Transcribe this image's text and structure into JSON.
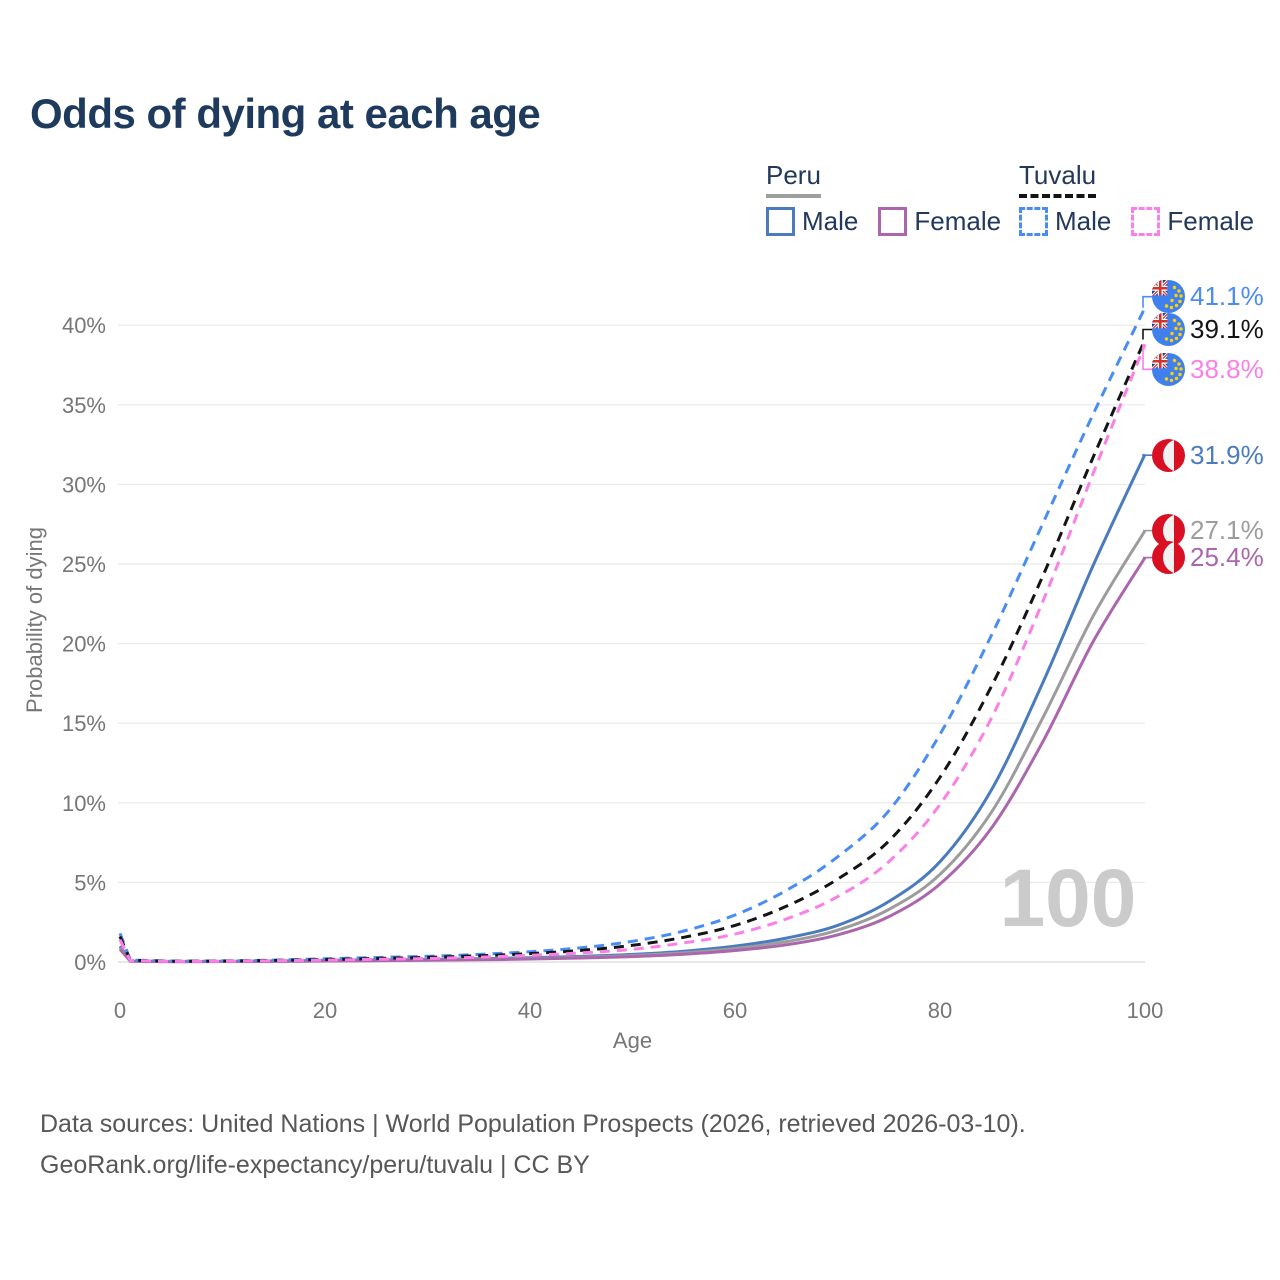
{
  "title": "Odds of dying at each age",
  "watermark": "100",
  "legend": {
    "groups": [
      {
        "label": "Peru",
        "line_style": "solid",
        "underline_color": "#9e9e9e",
        "items": [
          {
            "label": "Male",
            "color": "#4a7bbd"
          },
          {
            "label": "Female",
            "color": "#ab66ad"
          }
        ]
      },
      {
        "label": "Tuvalu",
        "line_style": "dashed",
        "underline_color": "#141414",
        "items": [
          {
            "label": "Male",
            "color": "#4a8df2"
          },
          {
            "label": "Female",
            "color": "#fa80e8"
          }
        ]
      }
    ]
  },
  "chart_data": {
    "type": "line",
    "title": "Odds of dying at each age",
    "xlabel": "Age",
    "ylabel": "Probability of dying",
    "xlim": [
      0,
      100
    ],
    "ylim": [
      0,
      42
    ],
    "grid": "horizontal",
    "x_ticks": [
      0,
      20,
      40,
      60,
      80,
      100
    ],
    "y_ticks": [
      0,
      5,
      10,
      15,
      20,
      25,
      30,
      35,
      40
    ],
    "y_tick_labels": [
      "0%",
      "5%",
      "10%",
      "15%",
      "20%",
      "25%",
      "30%",
      "35%",
      "40%"
    ],
    "x": [
      0,
      1,
      5,
      10,
      15,
      20,
      25,
      30,
      35,
      40,
      45,
      50,
      55,
      60,
      65,
      70,
      75,
      80,
      85,
      90,
      95,
      100
    ],
    "series": [
      {
        "name": "Tuvalu Male",
        "country": "Tuvalu",
        "sex": "Male",
        "color": "#4a8df2",
        "dash": "dashed",
        "flag": "tuvalu",
        "end_label": "41.1%",
        "values": [
          1.8,
          0.12,
          0.06,
          0.07,
          0.12,
          0.2,
          0.28,
          0.36,
          0.48,
          0.65,
          0.9,
          1.3,
          1.95,
          2.95,
          4.5,
          6.6,
          9.5,
          14.3,
          20.5,
          27.5,
          34.5,
          41.1
        ]
      },
      {
        "name": "Tuvalu Both sexes",
        "country": "Tuvalu",
        "sex": "Both",
        "color": "#141414",
        "dash": "dashed",
        "flag": "tuvalu",
        "end_label": "39.1%",
        "values": [
          1.6,
          0.1,
          0.05,
          0.06,
          0.1,
          0.16,
          0.22,
          0.29,
          0.39,
          0.53,
          0.73,
          1.05,
          1.55,
          2.3,
          3.5,
          5.2,
          7.6,
          11.6,
          17.3,
          24.2,
          31.8,
          39.1
        ]
      },
      {
        "name": "Tuvalu Female",
        "country": "Tuvalu",
        "sex": "Female",
        "color": "#fa80e8",
        "dash": "dashed",
        "flag": "tuvalu",
        "end_label": "38.8%",
        "values": [
          1.4,
          0.09,
          0.04,
          0.05,
          0.08,
          0.12,
          0.17,
          0.22,
          0.3,
          0.42,
          0.57,
          0.8,
          1.2,
          1.75,
          2.7,
          4.1,
          6.3,
          9.9,
          15.3,
          22.6,
          30.8,
          38.8
        ]
      },
      {
        "name": "Peru Male",
        "country": "Peru",
        "sex": "Male",
        "color": "#4a7bbd",
        "dash": "solid",
        "flag": "peru",
        "end_label": "31.9%",
        "values": [
          1.0,
          0.07,
          0.03,
          0.04,
          0.06,
          0.1,
          0.13,
          0.16,
          0.21,
          0.27,
          0.35,
          0.48,
          0.68,
          1.0,
          1.5,
          2.3,
          3.8,
          6.3,
          10.8,
          17.5,
          25.0,
          31.9
        ]
      },
      {
        "name": "Peru Both sexes",
        "country": "Peru",
        "sex": "Both",
        "color": "#9c9c9c",
        "dash": "solid",
        "flag": "peru",
        "end_label": "27.1%",
        "values": [
          0.9,
          0.06,
          0.03,
          0.03,
          0.05,
          0.08,
          0.11,
          0.13,
          0.17,
          0.22,
          0.3,
          0.41,
          0.58,
          0.85,
          1.28,
          2.0,
          3.3,
          5.5,
          9.4,
          15.3,
          21.8,
          27.1
        ]
      },
      {
        "name": "Peru Female",
        "country": "Peru",
        "sex": "Female",
        "color": "#ab66ad",
        "dash": "solid",
        "flag": "peru",
        "end_label": "25.4%",
        "values": [
          0.8,
          0.05,
          0.02,
          0.03,
          0.04,
          0.06,
          0.08,
          0.11,
          0.14,
          0.19,
          0.25,
          0.34,
          0.49,
          0.72,
          1.08,
          1.7,
          2.85,
          4.9,
          8.4,
          13.8,
          20.2,
          25.4
        ]
      }
    ]
  },
  "footer": {
    "line1": "Data sources: United Nations | World Population Prospects (2026, retrieved 2026-03-10).",
    "line2": "GeoRank.org/life-expectancy/peru/tuvalu | CC BY"
  }
}
